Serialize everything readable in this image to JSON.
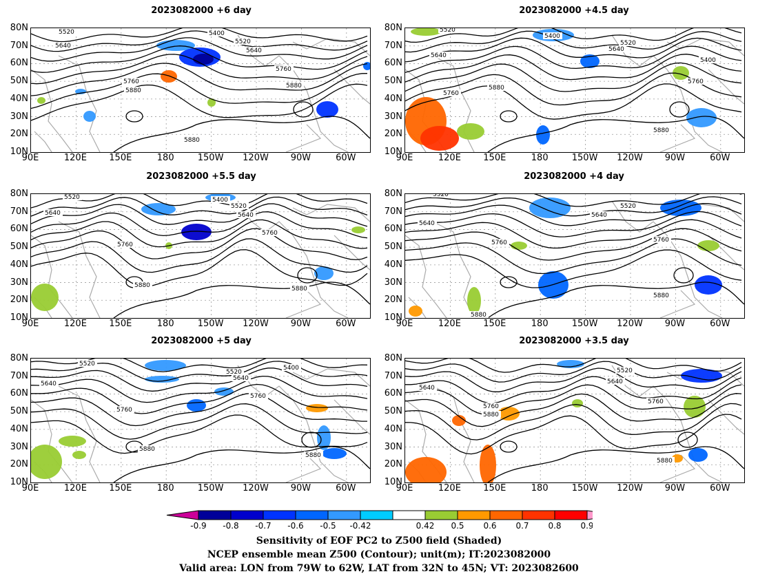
{
  "panels": [
    {
      "title": "2023082000 +6 day",
      "contour_labels": [
        "5400",
        "5520",
        "5520",
        "5640",
        "5640",
        "5760",
        "5760",
        "5880",
        "5880",
        "5880"
      ]
    },
    {
      "title": "2023082000 +4.5 day",
      "contour_labels": [
        "5520",
        "5400",
        "5520",
        "5640",
        "5640",
        "5400",
        "5760",
        "5880",
        "5760",
        "5880"
      ]
    },
    {
      "title": "2023082000 +5.5 day",
      "contour_labels": [
        "5520",
        "5400",
        "5520",
        "5640",
        "5640",
        "5760",
        "5760",
        "5880",
        "5880"
      ]
    },
    {
      "title": "2023082000 +4 day",
      "contour_labels": [
        "5520",
        "5520",
        "5640",
        "5640",
        "5760",
        "5760",
        "5880",
        "5880"
      ]
    },
    {
      "title": "2023082000 +5 day",
      "contour_labels": [
        "5520",
        "5400",
        "5520",
        "5640",
        "5640",
        "5760",
        "5760",
        "5880",
        "5880"
      ]
    },
    {
      "title": "2023082000 +3.5 day",
      "contour_labels": [
        "5520",
        "5640",
        "5640",
        "5760",
        "5760",
        "5880",
        "5880"
      ]
    }
  ],
  "lat_labels": [
    "80N",
    "70N",
    "60N",
    "50N",
    "40N",
    "30N",
    "20N",
    "10N"
  ],
  "lon_labels": [
    "90E",
    "120E",
    "150E",
    "180",
    "150W",
    "120W",
    "90W",
    "60W"
  ],
  "colorbar": {
    "labels": [
      "-0.9",
      "-0.8",
      "-0.7",
      "-0.6",
      "-0.5",
      "-0.42",
      "0.42",
      "0.5",
      "0.6",
      "0.7",
      "0.8",
      "0.9"
    ],
    "colors": [
      "#000099",
      "#0000cc",
      "#0033ff",
      "#0066ff",
      "#3399ff",
      "#00ccff",
      "#ffffff",
      "#99cc33",
      "#ff9900",
      "#ff6600",
      "#ff3300",
      "#ff0000"
    ],
    "end_low": "#cc0099",
    "end_high": "#ff99cc"
  },
  "caption": {
    "line1": "Sensitivity of EOF PC2 to Z500 field (Shaded)",
    "line2": "NCEP ensemble mean Z500 (Contour); unit(m); IT:2023082000",
    "line3": "Valid area: LON from 79W to 62W, LAT from 32N to 45N; VT: 2023082600"
  }
}
